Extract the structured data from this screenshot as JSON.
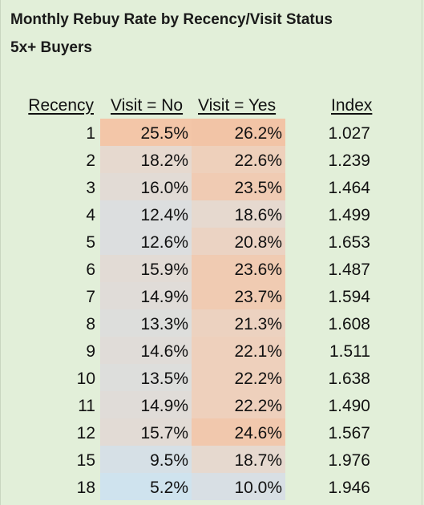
{
  "sheet": {
    "title_line1": "Monthly Rebuy Rate by Recency/Visit Status",
    "title_line2": "5x+ Buyers",
    "headers": {
      "recency": "Recency",
      "visit_no": "Visit = No",
      "visit_yes": "Visit = Yes",
      "index": "Index"
    },
    "rows": [
      {
        "recency": "1",
        "visit_no": "25.5%",
        "visit_yes": "26.2%",
        "index": "1.027",
        "no_color": "#f3c6a8",
        "yes_color": "#f2c4a6"
      },
      {
        "recency": "2",
        "visit_no": "18.2%",
        "visit_yes": "22.6%",
        "index": "1.239",
        "no_color": "#e6d9cf",
        "yes_color": "#eed0bb"
      },
      {
        "recency": "3",
        "visit_no": "16.0%",
        "visit_yes": "23.5%",
        "index": "1.464",
        "no_color": "#e2dbd5",
        "yes_color": "#f0cbb3"
      },
      {
        "recency": "4",
        "visit_no": "12.4%",
        "visit_yes": "18.6%",
        "index": "1.499",
        "no_color": "#dcdedf",
        "yes_color": "#e6d9cf"
      },
      {
        "recency": "5",
        "visit_no": "12.6%",
        "visit_yes": "20.8%",
        "index": "1.653",
        "no_color": "#dcdedf",
        "yes_color": "#ebd3c3"
      },
      {
        "recency": "6",
        "visit_no": "15.9%",
        "visit_yes": "23.6%",
        "index": "1.487",
        "no_color": "#e2dbd5",
        "yes_color": "#f0cbb2"
      },
      {
        "recency": "7",
        "visit_no": "14.9%",
        "visit_yes": "23.7%",
        "index": "1.594",
        "no_color": "#e0dcd8",
        "yes_color": "#f0cbb2"
      },
      {
        "recency": "8",
        "visit_no": "13.3%",
        "visit_yes": "21.3%",
        "index": "1.608",
        "no_color": "#dddedc",
        "yes_color": "#ecd2c0"
      },
      {
        "recency": "9",
        "visit_no": "14.6%",
        "visit_yes": "22.1%",
        "index": "1.511",
        "no_color": "#e0dcd8",
        "yes_color": "#eed0bc"
      },
      {
        "recency": "10",
        "visit_no": "13.5%",
        "visit_yes": "22.2%",
        "index": "1.638",
        "no_color": "#dddedc",
        "yes_color": "#eed0bc"
      },
      {
        "recency": "11",
        "visit_no": "14.9%",
        "visit_yes": "22.2%",
        "index": "1.490",
        "no_color": "#e0dcd8",
        "yes_color": "#eed0bc"
      },
      {
        "recency": "12",
        "visit_no": "15.7%",
        "visit_yes": "24.6%",
        "index": "1.567",
        "no_color": "#e2dbd5",
        "yes_color": "#f1c8ad"
      },
      {
        "recency": "15",
        "visit_no": "9.5%",
        "visit_yes": "18.7%",
        "index": "1.976",
        "no_color": "#d6e0e6",
        "yes_color": "#e6d9cf"
      },
      {
        "recency": "18",
        "visit_no": "5.2%",
        "visit_yes": "10.0%",
        "index": "1.946",
        "no_color": "#cfe3ee",
        "yes_color": "#d8dfe4"
      }
    ]
  }
}
